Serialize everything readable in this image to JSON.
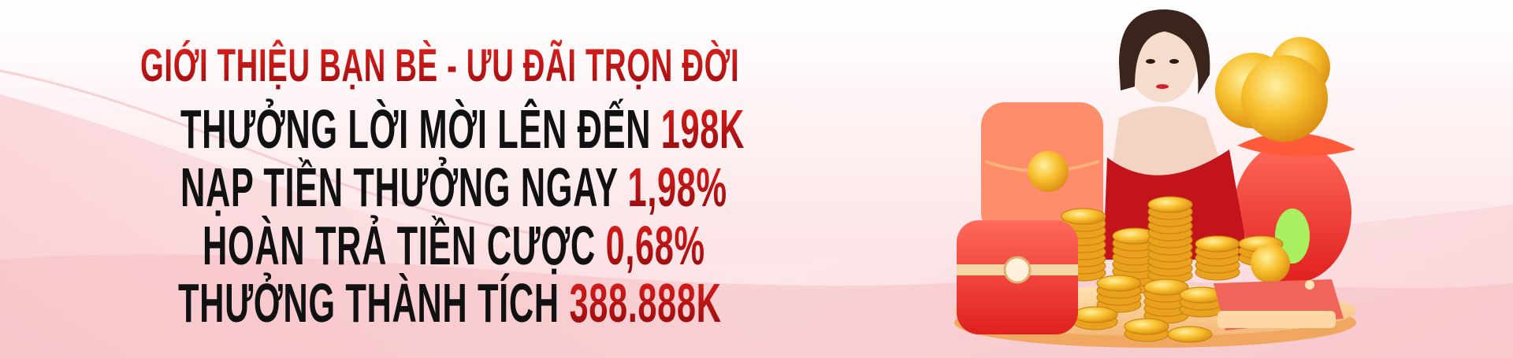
{
  "banner": {
    "headline": "GIỚI THIỆU BẠN BÈ - ƯU ĐÃI TRỌN ĐỜI",
    "promos": [
      {
        "label": "THƯỞNG LỜI MỜI LÊN ĐẾN",
        "value": "198K"
      },
      {
        "label": "NẠP TIỀN THƯỞNG NGAY",
        "value": "1,98%"
      },
      {
        "label": "HOÀN TRẢ TIỀN CƯỢC",
        "value": "0,68%"
      },
      {
        "label": "THƯỞNG THÀNH TÍCH",
        "value": "388.888K"
      }
    ],
    "colors": {
      "accent_red": "#c8101a",
      "text_dark": "#111111",
      "gold": "#f5b62a",
      "background_pink": "#fbe3e4"
    }
  }
}
